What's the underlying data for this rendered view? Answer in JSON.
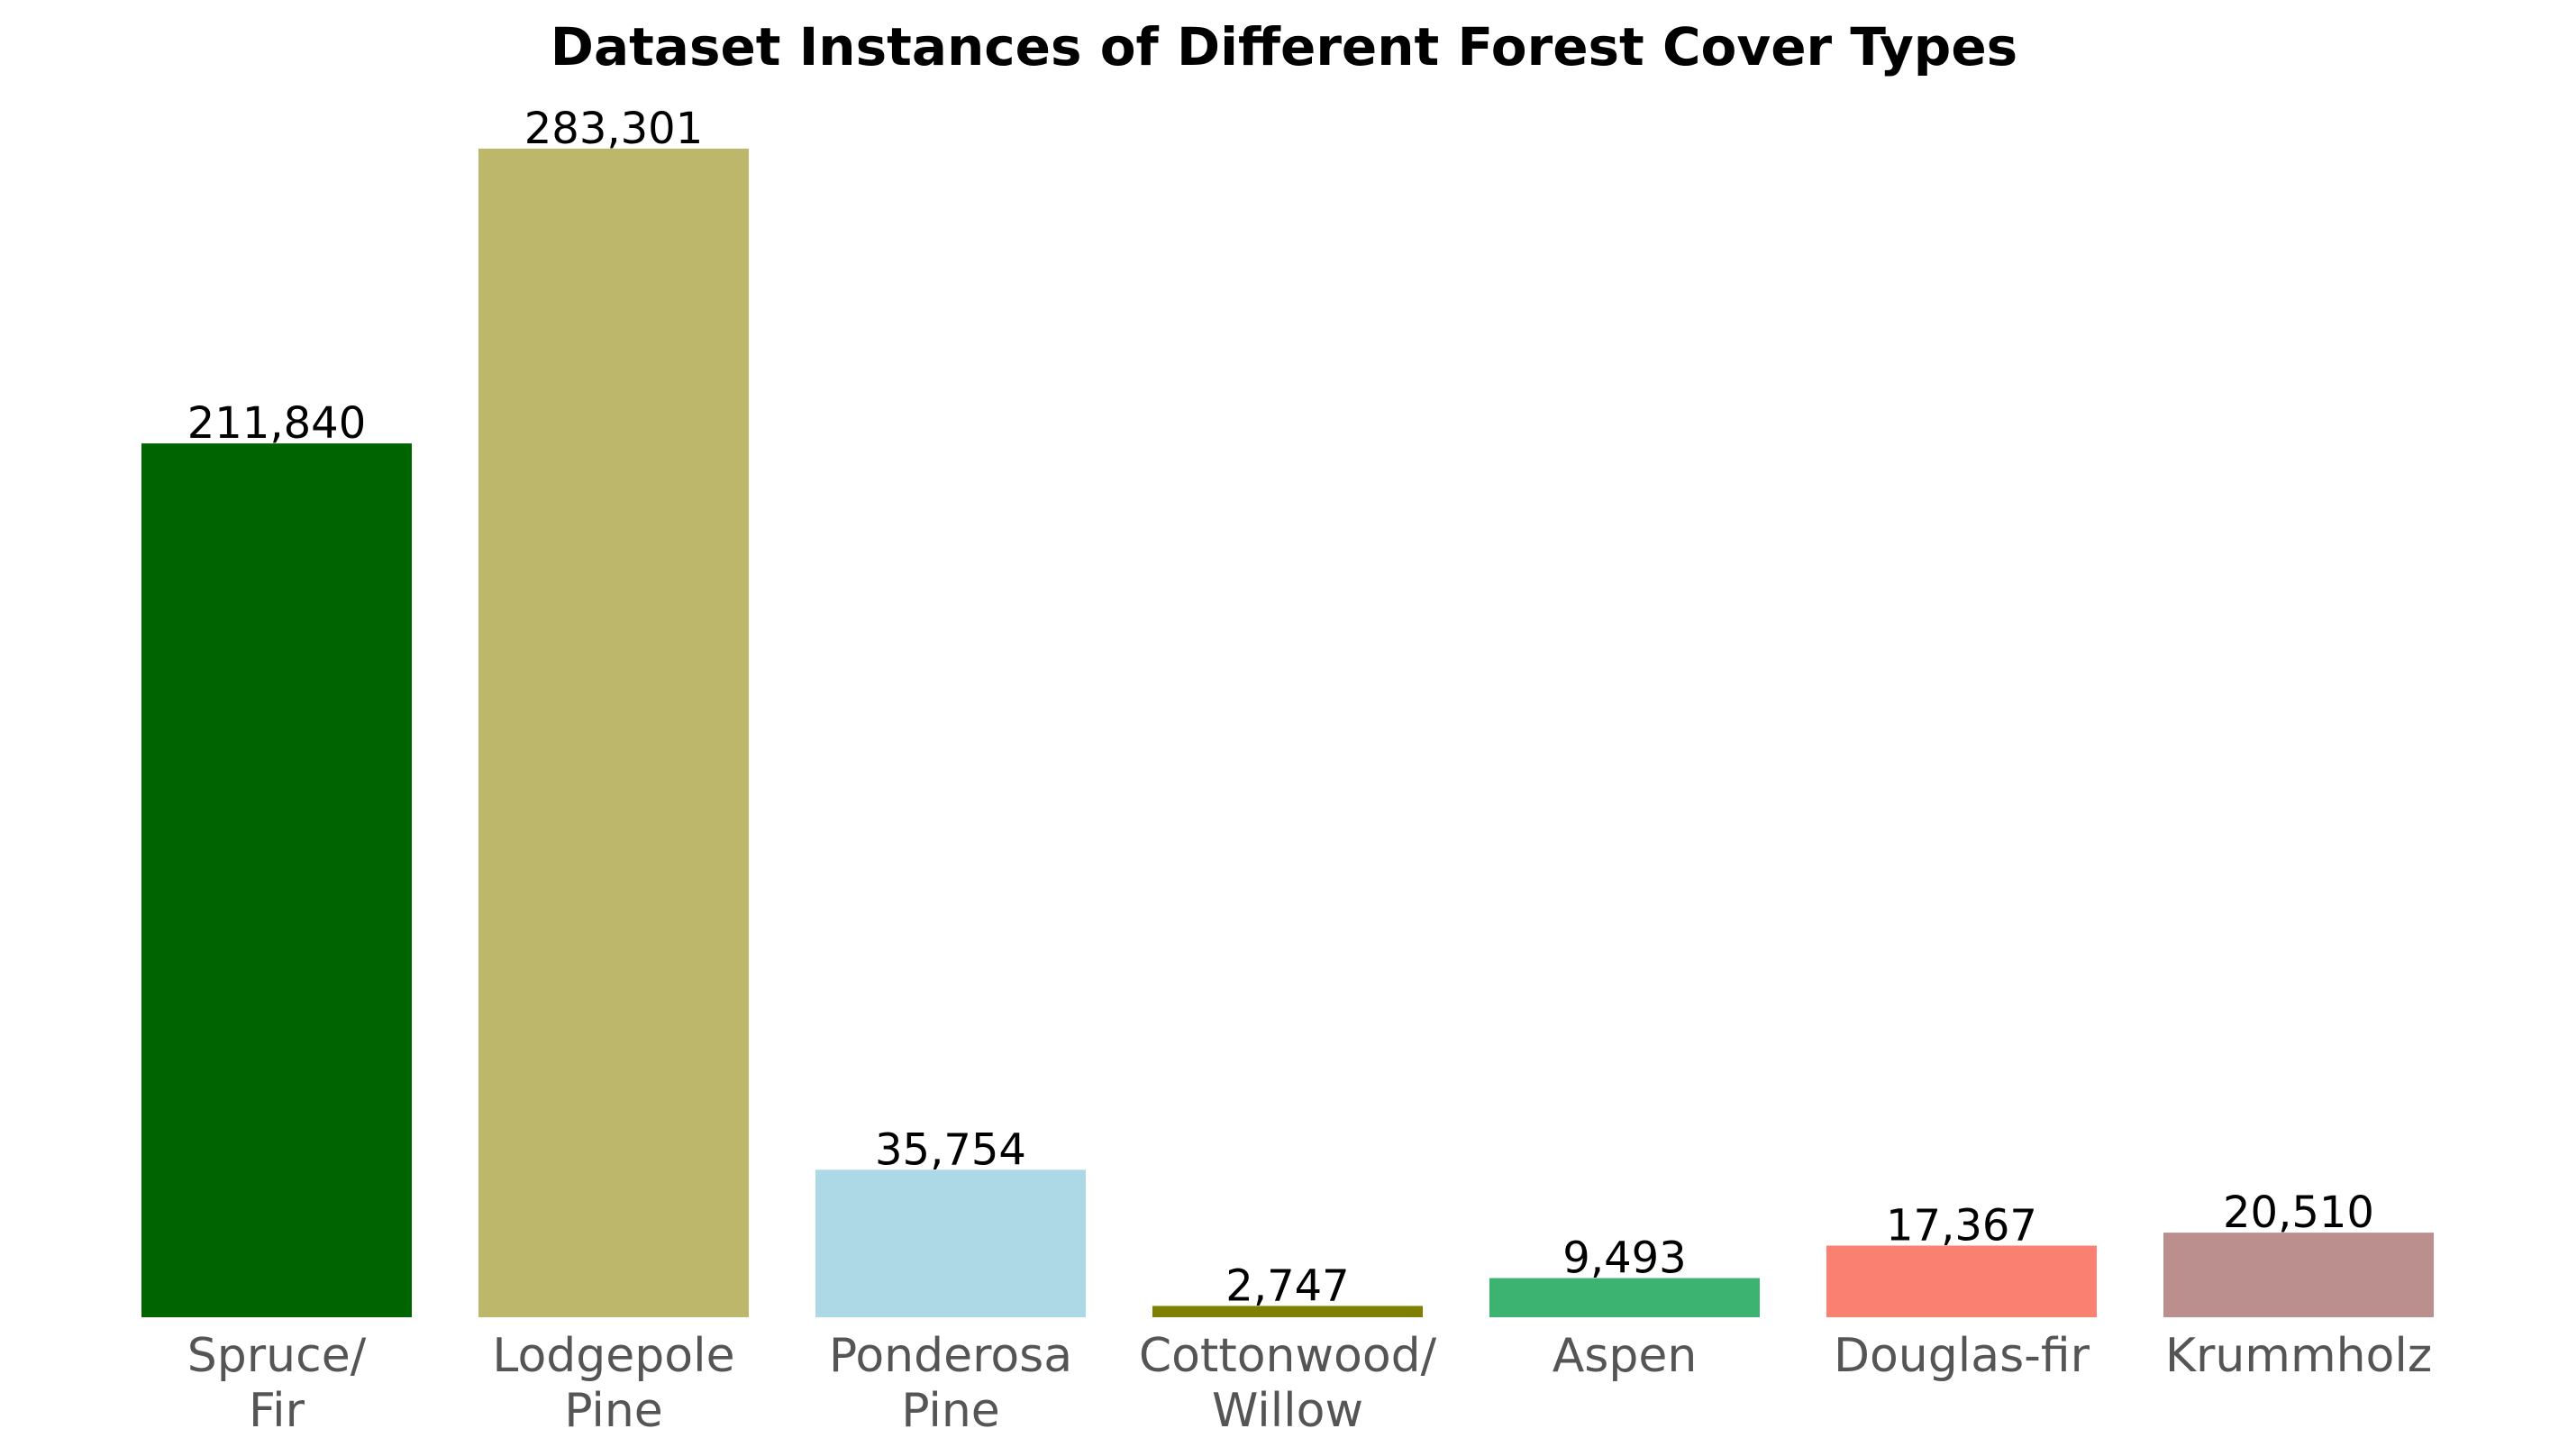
{
  "chart_data": {
    "type": "bar",
    "title": "Dataset Instances of Different Forest Cover Types",
    "xlabel": "",
    "ylabel": "",
    "categories": [
      [
        "Spruce/",
        "Fir"
      ],
      [
        "Lodgepole",
        "Pine"
      ],
      [
        "Ponderosa",
        "Pine"
      ],
      [
        "Cottonwood/",
        "Willow"
      ],
      [
        "Aspen"
      ],
      [
        "Douglas-fir"
      ],
      [
        "Krummholz"
      ]
    ],
    "values": [
      211840,
      283301,
      35754,
      2747,
      9493,
      17367,
      20510
    ],
    "value_labels": [
      "211,840",
      "283,301",
      "35,754",
      "2,747",
      "9,493",
      "17,367",
      "20,510"
    ],
    "colors": [
      "#006400",
      "#BDB76B",
      "#ADD8E6",
      "#808000",
      "#3CB371",
      "#FA8072",
      "#BC8F8F"
    ],
    "ylim": [
      0,
      283301
    ],
    "grid": false,
    "legend": "none"
  }
}
